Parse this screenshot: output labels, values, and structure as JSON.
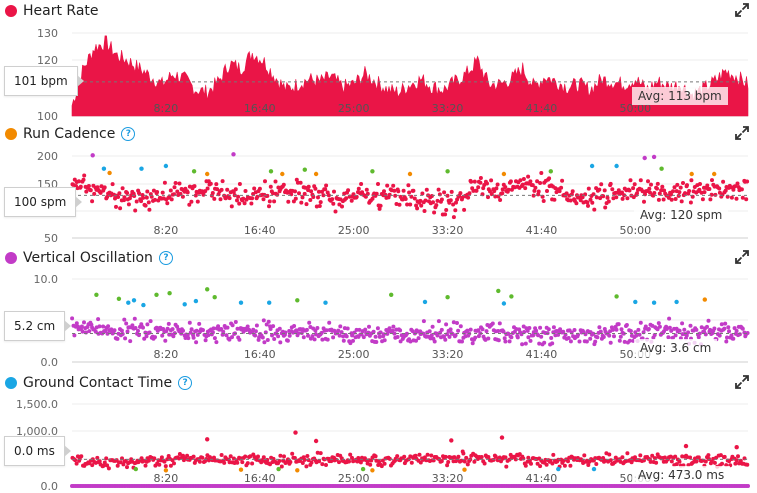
{
  "colors": {
    "heart": "#ea1547",
    "cadence_orange": "#f28a00",
    "cadence_green": "#5fba2e",
    "cadence_blue": "#1aa6e4",
    "purple": "#c23bc7",
    "red": "#ea1547",
    "help": "#1a9be0"
  },
  "panels": [
    {
      "title": "Heart Rate",
      "dot_color": "#ea1547",
      "has_help": false,
      "callout": "101 bpm",
      "avg_label": "Avg: 113 bpm",
      "y_ticks": [
        "130",
        "120",
        "110",
        "100"
      ]
    },
    {
      "title": "Run Cadence",
      "dot_color": "#f28a00",
      "has_help": true,
      "callout": "100 spm",
      "avg_label": "Avg: 120 spm",
      "y_ticks": [
        "200",
        "150",
        "100",
        "50"
      ]
    },
    {
      "title": "Vertical Oscillation",
      "dot_color": "#c23bc7",
      "has_help": true,
      "callout": "5.2 cm",
      "avg_label": "Avg: 3.6 cm",
      "y_ticks": [
        "10.0",
        "5.0",
        "0.0"
      ]
    },
    {
      "title": "Ground Contact Time",
      "dot_color": "#1aa6e4",
      "has_help": true,
      "callout": "0.0 ms",
      "avg_label": "Avg: 473.0 ms",
      "y_ticks": [
        "1,500.0",
        "1,000.0",
        "500.0",
        "0.0"
      ]
    }
  ],
  "x_ticks": [
    "8:20",
    "16:40",
    "25:00",
    "33:20",
    "41:40",
    "50:00"
  ],
  "chart_data": [
    {
      "type": "area",
      "title": "Heart Rate",
      "unit": "bpm",
      "x_unit": "elapsed time (mm:ss)",
      "x_range_seconds": [
        0,
        3600
      ],
      "ylim": [
        100,
        135
      ],
      "average": 113,
      "callout_value": 101,
      "x_seconds": [
        0,
        60,
        120,
        180,
        240,
        300,
        360,
        420,
        480,
        540,
        600,
        660,
        720,
        780,
        840,
        900,
        960,
        1020,
        1080,
        1140,
        1200,
        1260,
        1320,
        1380,
        1440,
        1500,
        1560,
        1620,
        1680,
        1740,
        1800,
        1860,
        1920,
        1980,
        2040,
        2100,
        2160,
        2220,
        2280,
        2340,
        2400,
        2460,
        2520,
        2580,
        2640,
        2700,
        2760,
        2820,
        2880,
        2940,
        3000,
        3060,
        3120,
        3180,
        3240,
        3300,
        3360,
        3420,
        3480,
        3540,
        3600
      ],
      "values": [
        104,
        118,
        126,
        128,
        123,
        121,
        118,
        115,
        112,
        116,
        114,
        110,
        109,
        113,
        120,
        118,
        124,
        121,
        115,
        110,
        112,
        114,
        113,
        115,
        111,
        112,
        116,
        113,
        110,
        109,
        112,
        114,
        111,
        110,
        113,
        116,
        121,
        112,
        112,
        114,
        118,
        111,
        115,
        113,
        111,
        112,
        110,
        114,
        113,
        112,
        114,
        110,
        113,
        111,
        112,
        108,
        110,
        113,
        117,
        115,
        112
      ]
    },
    {
      "type": "scatter",
      "title": "Run Cadence",
      "unit": "spm",
      "ylim": [
        40,
        205
      ],
      "average": 120,
      "callout_value": 100,
      "trend_x_seconds": [
        0,
        120,
        240,
        360,
        480,
        600,
        720,
        840,
        960,
        1080,
        1200,
        1320,
        1440,
        1560,
        1680,
        1800,
        1920,
        2040,
        2160,
        2280,
        2400,
        2520,
        2640,
        2760,
        2880,
        3000,
        3120,
        3240,
        3360,
        3480,
        3600
      ],
      "trend_values": [
        145,
        130,
        120,
        115,
        118,
        125,
        128,
        120,
        118,
        122,
        130,
        120,
        115,
        118,
        122,
        116,
        110,
        100,
        135,
        130,
        140,
        138,
        122,
        118,
        120,
        128,
        122,
        125,
        130,
        132,
        135
      ],
      "spread": 15,
      "high_points": [
        {
          "x_seconds": 110,
          "y": 195,
          "color": "purple"
        },
        {
          "x_seconds": 170,
          "y": 170,
          "color": "blue"
        },
        {
          "x_seconds": 200,
          "y": 162,
          "color": "orange"
        },
        {
          "x_seconds": 370,
          "y": 170,
          "color": "blue"
        },
        {
          "x_seconds": 500,
          "y": 175,
          "color": "blue"
        },
        {
          "x_seconds": 650,
          "y": 165,
          "color": "green"
        },
        {
          "x_seconds": 720,
          "y": 160,
          "color": "orange"
        },
        {
          "x_seconds": 860,
          "y": 197,
          "color": "purple"
        },
        {
          "x_seconds": 1060,
          "y": 165,
          "color": "green"
        },
        {
          "x_seconds": 1120,
          "y": 160,
          "color": "orange"
        },
        {
          "x_seconds": 1240,
          "y": 168,
          "color": "green"
        },
        {
          "x_seconds": 1300,
          "y": 160,
          "color": "orange"
        },
        {
          "x_seconds": 1600,
          "y": 165,
          "color": "green"
        },
        {
          "x_seconds": 1800,
          "y": 160,
          "color": "orange"
        },
        {
          "x_seconds": 2000,
          "y": 165,
          "color": "green"
        },
        {
          "x_seconds": 2300,
          "y": 160,
          "color": "orange"
        },
        {
          "x_seconds": 2550,
          "y": 165,
          "color": "green"
        },
        {
          "x_seconds": 2770,
          "y": 175,
          "color": "blue"
        },
        {
          "x_seconds": 2900,
          "y": 175,
          "color": "blue"
        },
        {
          "x_seconds": 3050,
          "y": 190,
          "color": "purple"
        },
        {
          "x_seconds": 3100,
          "y": 192,
          "color": "purple"
        },
        {
          "x_seconds": 3140,
          "y": 170,
          "color": "green"
        },
        {
          "x_seconds": 3300,
          "y": 160,
          "color": "orange"
        },
        {
          "x_seconds": 3420,
          "y": 160,
          "color": "orange"
        }
      ]
    },
    {
      "type": "scatter",
      "title": "Vertical Oscillation",
      "unit": "cm",
      "ylim": [
        0,
        10.5
      ],
      "average": 3.6,
      "callout_value": 5.2,
      "trend_x_seconds": [
        0,
        300,
        600,
        900,
        1200,
        1500,
        1800,
        2100,
        2400,
        2700,
        3000,
        3300,
        3600
      ],
      "trend_values": [
        4.3,
        4.0,
        3.9,
        3.8,
        3.7,
        3.6,
        3.5,
        3.6,
        3.4,
        3.3,
        3.6,
        3.8,
        3.7
      ],
      "spread": 0.9,
      "high_points": [
        {
          "x_seconds": 130,
          "y": 8.5,
          "color": "green"
        },
        {
          "x_seconds": 250,
          "y": 8.0,
          "color": "green"
        },
        {
          "x_seconds": 300,
          "y": 7.5,
          "color": "blue"
        },
        {
          "x_seconds": 330,
          "y": 7.8,
          "color": "blue"
        },
        {
          "x_seconds": 380,
          "y": 7.2,
          "color": "blue"
        },
        {
          "x_seconds": 450,
          "y": 8.5,
          "color": "green"
        },
        {
          "x_seconds": 520,
          "y": 8.7,
          "color": "green"
        },
        {
          "x_seconds": 600,
          "y": 7.3,
          "color": "blue"
        },
        {
          "x_seconds": 660,
          "y": 7.7,
          "color": "blue"
        },
        {
          "x_seconds": 720,
          "y": 9.2,
          "color": "green"
        },
        {
          "x_seconds": 760,
          "y": 8.2,
          "color": "green"
        },
        {
          "x_seconds": 900,
          "y": 7.5,
          "color": "blue"
        },
        {
          "x_seconds": 1050,
          "y": 7.5,
          "color": "blue"
        },
        {
          "x_seconds": 1200,
          "y": 7.8,
          "color": "green"
        },
        {
          "x_seconds": 1350,
          "y": 7.5,
          "color": "blue"
        },
        {
          "x_seconds": 1700,
          "y": 8.5,
          "color": "green"
        },
        {
          "x_seconds": 1880,
          "y": 7.6,
          "color": "blue"
        },
        {
          "x_seconds": 2000,
          "y": 8.2,
          "color": "green"
        },
        {
          "x_seconds": 2270,
          "y": 9.0,
          "color": "green"
        },
        {
          "x_seconds": 2300,
          "y": 7.4,
          "color": "blue"
        },
        {
          "x_seconds": 2340,
          "y": 8.3,
          "color": "green"
        },
        {
          "x_seconds": 2900,
          "y": 8.3,
          "color": "green"
        },
        {
          "x_seconds": 3000,
          "y": 7.6,
          "color": "blue"
        },
        {
          "x_seconds": 3100,
          "y": 7.5,
          "color": "blue"
        },
        {
          "x_seconds": 3220,
          "y": 7.6,
          "color": "blue"
        },
        {
          "x_seconds": 3370,
          "y": 7.9,
          "color": "orange"
        }
      ]
    },
    {
      "type": "scatter",
      "title": "Ground Contact Time",
      "unit": "ms",
      "ylim": [
        0,
        1600
      ],
      "average": 473,
      "callout_value": 0.0,
      "trend_x_seconds": [
        0,
        300,
        600,
        900,
        1200,
        1500,
        1800,
        2100,
        2400,
        2700,
        3000,
        3300,
        3600
      ],
      "trend_values": [
        420,
        440,
        480,
        470,
        460,
        450,
        470,
        480,
        460,
        450,
        470,
        460,
        450
      ],
      "spread": 70,
      "baseline_value": 0,
      "high_points": [
        {
          "x_seconds": 720,
          "y": 830,
          "color": "red"
        },
        {
          "x_seconds": 1190,
          "y": 950,
          "color": "red"
        },
        {
          "x_seconds": 1300,
          "y": 800,
          "color": "red"
        },
        {
          "x_seconds": 2020,
          "y": 810,
          "color": "red"
        },
        {
          "x_seconds": 2290,
          "y": 860,
          "color": "red"
        },
        {
          "x_seconds": 3270,
          "y": 710,
          "color": "red"
        },
        {
          "x_seconds": 3540,
          "y": 690,
          "color": "red"
        },
        {
          "x_seconds": 340,
          "y": 300,
          "color": "green"
        },
        {
          "x_seconds": 500,
          "y": 280,
          "color": "orange"
        },
        {
          "x_seconds": 900,
          "y": 290,
          "color": "orange"
        },
        {
          "x_seconds": 1100,
          "y": 300,
          "color": "green"
        },
        {
          "x_seconds": 1200,
          "y": 280,
          "color": "orange"
        },
        {
          "x_seconds": 1550,
          "y": 300,
          "color": "green"
        },
        {
          "x_seconds": 1600,
          "y": 280,
          "color": "orange"
        },
        {
          "x_seconds": 2090,
          "y": 290,
          "color": "orange"
        },
        {
          "x_seconds": 2590,
          "y": 300,
          "color": "blue"
        },
        {
          "x_seconds": 2780,
          "y": 300,
          "color": "blue"
        }
      ]
    }
  ]
}
